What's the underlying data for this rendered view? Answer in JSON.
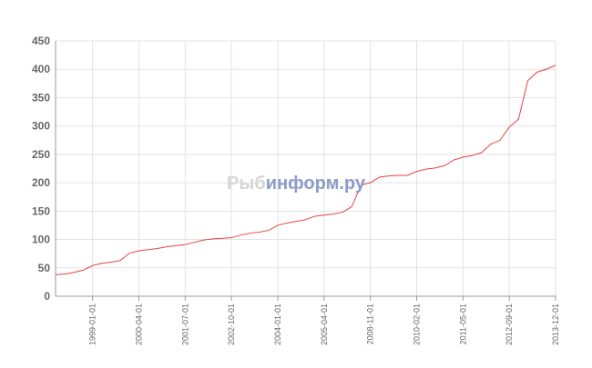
{
  "chart_data": {
    "type": "line",
    "watermark": [
      "Рыб",
      "информ.ру"
    ],
    "categories": [
      null,
      null,
      null,
      null,
      "1999-01-01",
      null,
      null,
      null,
      null,
      "2000-04-01",
      null,
      null,
      null,
      null,
      "2001-07-01",
      null,
      null,
      null,
      null,
      "2002-10-01",
      null,
      null,
      null,
      null,
      "2004-01-01",
      null,
      null,
      null,
      null,
      "2005-04-01",
      null,
      null,
      null,
      null,
      "2008-11-01",
      null,
      null,
      null,
      null,
      "2010-02-01",
      null,
      null,
      null,
      null,
      "2011-05-01",
      null,
      null,
      null,
      null,
      "2012-09-01",
      null,
      null,
      null,
      null,
      "2013-12-01"
    ],
    "series": [
      {
        "color": "#e8423f",
        "values": [
          38,
          39,
          42,
          46,
          54,
          58,
          60,
          63,
          76,
          80,
          82,
          84,
          87,
          89,
          91,
          95,
          99,
          101,
          102,
          103,
          108,
          111,
          113,
          116,
          125,
          129,
          132,
          135,
          141,
          143,
          145,
          148,
          158,
          196,
          200,
          210,
          212,
          213,
          213,
          220,
          224,
          226,
          230,
          240,
          245,
          248,
          253,
          268,
          275,
          298,
          312,
          380,
          395,
          400,
          407
        ]
      }
    ],
    "ylim": [
      0,
      450
    ],
    "yticks": [
      0,
      50,
      100,
      150,
      200,
      250,
      300,
      350,
      400,
      450
    ],
    "grid": true
  }
}
